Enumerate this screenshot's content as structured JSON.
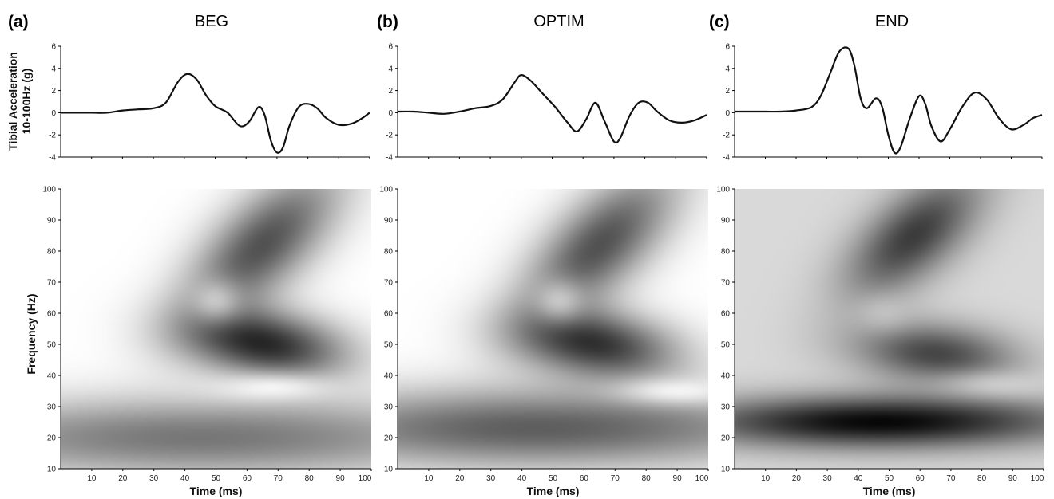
{
  "figure": {
    "ylabel_acceleration_line1": "Tibial Acceleration",
    "ylabel_acceleration_line2": "10-100Hz (g)",
    "ylabel_frequency": "Frequency (Hz)"
  },
  "chart_data": [
    {
      "type": "line",
      "panel": "(a)",
      "title": "BEG",
      "xlabel": "",
      "ylabel": "Tibial Acceleration 10-100Hz (g)",
      "xlim": [
        0,
        100
      ],
      "ylim": [
        -4,
        6
      ],
      "yticks": [
        -4,
        -2,
        0,
        2,
        4,
        6
      ],
      "x": [
        0,
        5,
        10,
        15,
        20,
        25,
        30,
        34,
        38,
        41,
        44,
        47,
        50,
        54,
        58,
        61,
        64,
        66,
        68,
        70,
        72,
        74,
        77,
        80,
        83,
        86,
        90,
        94,
        97,
        100
      ],
      "y": [
        0,
        0,
        0,
        0,
        0.2,
        0.3,
        0.4,
        0.9,
        2.8,
        3.5,
        3.0,
        1.6,
        0.6,
        0.0,
        -1.2,
        -0.8,
        0.5,
        -0.2,
        -2.5,
        -3.6,
        -3.1,
        -1.2,
        0.5,
        0.8,
        0.4,
        -0.5,
        -1.1,
        -1.0,
        -0.6,
        0.0
      ]
    },
    {
      "type": "line",
      "panel": "(b)",
      "title": "OPTIM",
      "xlabel": "",
      "ylabel": "",
      "xlim": [
        0,
        100
      ],
      "ylim": [
        -4,
        6
      ],
      "yticks": [
        -4,
        -2,
        0,
        2,
        4,
        6
      ],
      "x": [
        0,
        5,
        10,
        15,
        20,
        25,
        30,
        34,
        38,
        40,
        43,
        47,
        51,
        55,
        58,
        61,
        64,
        67,
        70,
        72,
        75,
        78,
        81,
        84,
        88,
        92,
        96,
        100
      ],
      "y": [
        0.1,
        0.1,
        0,
        -0.1,
        0.1,
        0.4,
        0.6,
        1.2,
        2.8,
        3.4,
        2.9,
        1.7,
        0.5,
        -0.9,
        -1.7,
        -0.6,
        0.9,
        -0.8,
        -2.6,
        -2.3,
        -0.3,
        0.9,
        0.9,
        0.1,
        -0.7,
        -0.9,
        -0.7,
        -0.2
      ]
    },
    {
      "type": "line",
      "panel": "(c)",
      "title": "END",
      "xlabel": "",
      "ylabel": "",
      "xlim": [
        0,
        100
      ],
      "ylim": [
        -4,
        6
      ],
      "yticks": [
        -4,
        -2,
        0,
        2,
        4,
        6
      ],
      "x": [
        0,
        5,
        10,
        15,
        20,
        25,
        28,
        31,
        34,
        37,
        39,
        41,
        43,
        46,
        48,
        50,
        52,
        54,
        57,
        60,
        62,
        64,
        67,
        70,
        74,
        78,
        82,
        86,
        90,
        94,
        97,
        100
      ],
      "y": [
        0.1,
        0.1,
        0.1,
        0.1,
        0.2,
        0.5,
        1.5,
        3.5,
        5.5,
        5.8,
        4.2,
        1.3,
        0.4,
        1.3,
        0.5,
        -2.0,
        -3.6,
        -3.1,
        -0.5,
        1.5,
        0.8,
        -1.2,
        -2.6,
        -1.5,
        0.5,
        1.8,
        1.2,
        -0.5,
        -1.5,
        -1.1,
        -0.5,
        -0.2
      ]
    },
    {
      "type": "heatmap",
      "panel": "(a)",
      "xlabel": "Time (ms)",
      "ylabel": "Frequency (Hz)",
      "xlim": [
        0,
        100
      ],
      "ylim": [
        10,
        100
      ],
      "xticks": [
        10,
        20,
        30,
        40,
        50,
        60,
        70,
        80,
        90,
        100
      ],
      "yticks": [
        10,
        20,
        30,
        40,
        50,
        60,
        70,
        80,
        90,
        100
      ],
      "background": "#ffffff",
      "components": [
        {
          "t": 65,
          "f": 82,
          "dt": 13,
          "df": 17,
          "amp": 0.7,
          "slope": 0.7
        },
        {
          "t": 66,
          "f": 50,
          "dt": 18,
          "df": 8,
          "amp": 0.85,
          "slope": -0.6
        },
        {
          "t": 45,
          "f": 20,
          "dt": 70,
          "df": 9,
          "amp": 0.55,
          "slope": 0
        },
        {
          "t": 50,
          "f": 64,
          "dt": 6,
          "df": 5,
          "amp": -0.6,
          "slope": 0
        },
        {
          "t": 68,
          "f": 36,
          "dt": 14,
          "df": 3,
          "amp": -0.85,
          "slope": 0
        }
      ]
    },
    {
      "type": "heatmap",
      "panel": "(b)",
      "xlabel": "Time (ms)",
      "ylabel": "",
      "xlim": [
        0,
        100
      ],
      "ylim": [
        10,
        100
      ],
      "xticks": [
        10,
        20,
        30,
        40,
        50,
        60,
        70,
        80,
        90,
        100
      ],
      "yticks": [
        10,
        20,
        30,
        40,
        50,
        60,
        70,
        80,
        90,
        100
      ],
      "background": "#ffffff",
      "components": [
        {
          "t": 65,
          "f": 82,
          "dt": 13,
          "df": 17,
          "amp": 0.7,
          "slope": 0.7
        },
        {
          "t": 64,
          "f": 50,
          "dt": 18,
          "df": 8,
          "amp": 0.8,
          "slope": -0.6
        },
        {
          "t": 45,
          "f": 23,
          "dt": 65,
          "df": 9,
          "amp": 0.65,
          "slope": 0
        },
        {
          "t": 52,
          "f": 64,
          "dt": 6,
          "df": 5,
          "amp": -0.6,
          "slope": 0
        },
        {
          "t": 90,
          "f": 35,
          "dt": 14,
          "df": 3,
          "amp": -0.85,
          "slope": 0
        }
      ]
    },
    {
      "type": "heatmap",
      "panel": "(c)",
      "xlabel": "Time (ms)",
      "ylabel": "",
      "xlim": [
        0,
        100
      ],
      "ylim": [
        10,
        100
      ],
      "xticks": [
        10,
        20,
        30,
        40,
        50,
        60,
        70,
        80,
        90,
        100
      ],
      "yticks": [
        10,
        20,
        30,
        40,
        50,
        60,
        70,
        80,
        90,
        100
      ],
      "background": "#d9d9d9",
      "components": [
        {
          "t": 58,
          "f": 85,
          "dt": 12,
          "df": 14,
          "amp": 0.75,
          "slope": 0.7
        },
        {
          "t": 65,
          "f": 47,
          "dt": 18,
          "df": 7,
          "amp": 0.7,
          "slope": -0.5
        },
        {
          "t": 47,
          "f": 25,
          "dt": 45,
          "df": 6,
          "amp": 1.0,
          "slope": 0
        },
        {
          "t": 48,
          "f": 60,
          "dt": 6,
          "df": 4,
          "amp": -0.5,
          "slope": 0
        },
        {
          "t": 86,
          "f": 37,
          "dt": 14,
          "df": 3,
          "amp": -0.75,
          "slope": 0
        }
      ]
    }
  ]
}
